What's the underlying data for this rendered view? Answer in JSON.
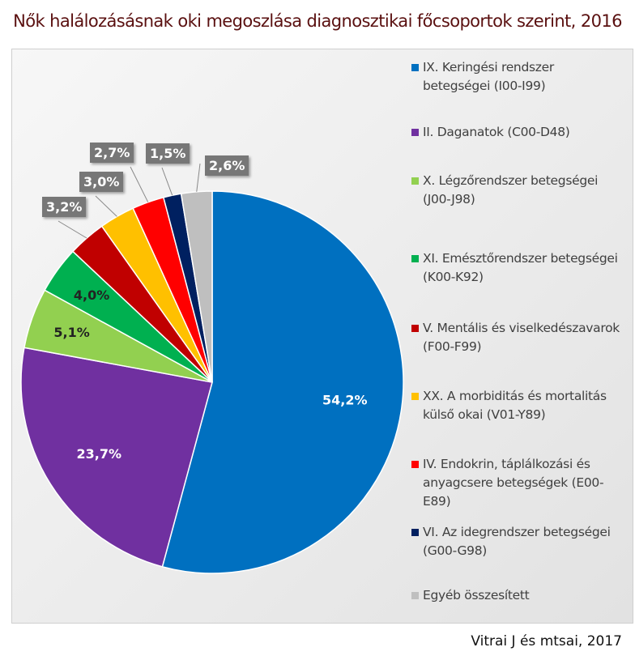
{
  "chart_data": {
    "type": "pie",
    "title": "Nők halálozásásnak oki megoszlása diagnosztikai főcsoportok szerint, 2016",
    "legend_position": "right",
    "slices": [
      {
        "name": "IX. Keringési rendszer betegségei (I00-I99)",
        "value": 54.2,
        "label": "54,2%",
        "color": "#0070c0"
      },
      {
        "name": "II. Daganatok (C00-D48)",
        "value": 23.7,
        "label": "23,7%",
        "color": "#7030a0"
      },
      {
        "name": "X. Légzőrendszer betegségei (J00-J98)",
        "value": 5.1,
        "label": "5,1%",
        "color": "#92d050"
      },
      {
        "name": "XI. Emésztőrendszer betegségei (K00-K92)",
        "value": 4.0,
        "label": "4,0%",
        "color": "#00b050"
      },
      {
        "name": "V. Mentális és viselkedészavarok (F00-F99)",
        "value": 3.2,
        "label": "3,2%",
        "color": "#c00000"
      },
      {
        "name": "XX. A morbiditás és mortalitás külső okai (V01-Y89)",
        "value": 3.0,
        "label": "3,0%",
        "color": "#ffc000"
      },
      {
        "name": "IV. Endokrin, táplálkozási és anyagcsere betegségek (E00-E89)",
        "value": 2.7,
        "label": "2,7%",
        "color": "#ff0000"
      },
      {
        "name": "VI. Az idegrendszer betegségei (G00-G98)",
        "value": 1.5,
        "label": "1,5%",
        "color": "#002060"
      },
      {
        "name": "Egyéb összesített",
        "value": 2.6,
        "label": "2,6%",
        "color": "#bfbfbf"
      }
    ]
  },
  "credit": "Vitrai J és mtsai, 2017"
}
